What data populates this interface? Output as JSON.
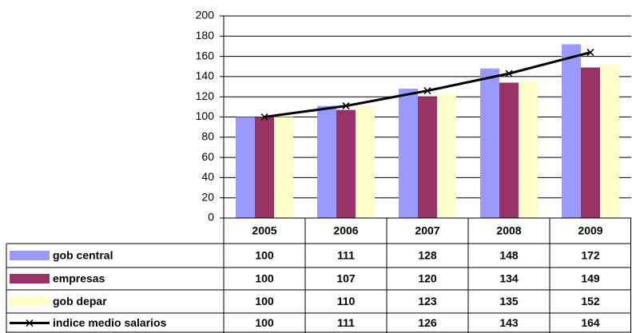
{
  "chart_data": {
    "type": "bar",
    "categories": [
      "2005",
      "2006",
      "2007",
      "2008",
      "2009"
    ],
    "series": [
      {
        "name": "gob central",
        "type": "bar",
        "color": "#9999ff",
        "values": [
          100,
          111,
          128,
          148,
          172
        ]
      },
      {
        "name": "empresas",
        "type": "bar",
        "color": "#993366",
        "values": [
          100,
          107,
          120,
          134,
          149
        ]
      },
      {
        "name": "gob depar",
        "type": "bar",
        "color": "#ffffcc",
        "values": [
          100,
          110,
          123,
          135,
          152
        ]
      },
      {
        "name": "indice medio salarios",
        "type": "line",
        "color": "#000000",
        "values": [
          100,
          111,
          126,
          143,
          164
        ]
      }
    ],
    "ylim": [
      0,
      200
    ],
    "yticks": [
      0,
      20,
      40,
      60,
      80,
      100,
      120,
      140,
      160,
      180,
      200
    ],
    "grid": true
  }
}
